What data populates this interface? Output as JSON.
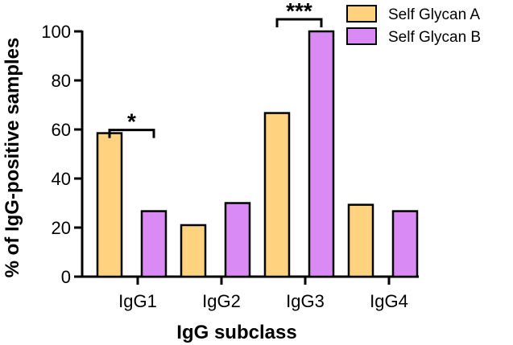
{
  "chart_data": {
    "type": "bar",
    "categories": [
      "IgG1",
      "IgG2",
      "IgG3",
      "IgG4"
    ],
    "series": [
      {
        "name": "Self Glycan A",
        "color": "#ffd27f",
        "values": [
          58.5,
          21,
          66.7,
          29.3
        ]
      },
      {
        "name": "Self Glycan B",
        "color": "#d98af5",
        "values": [
          26.7,
          30,
          100,
          26.7
        ]
      }
    ],
    "title": "",
    "xlabel": "IgG subclass",
    "ylabel": "% of IgG-positive samples",
    "ylim": [
      0,
      100
    ],
    "yticks": [
      "0",
      "20",
      "40",
      "60",
      "80",
      "100"
    ],
    "grid": false,
    "legend_position": "top-right",
    "annotations": [
      {
        "category": "IgG1",
        "text": "*"
      },
      {
        "category": "IgG3",
        "text": "***"
      }
    ]
  }
}
